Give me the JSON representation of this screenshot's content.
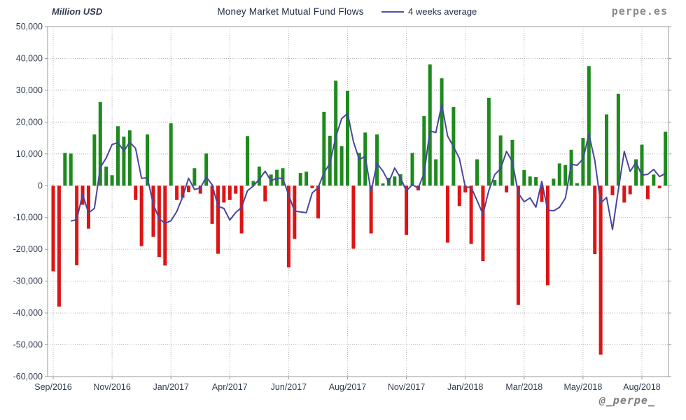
{
  "header": {
    "unit_label": "Million USD",
    "title": "Money Market Mutual Fund Flows",
    "legend_label": "4 weeks average",
    "watermark": "perpe.es"
  },
  "footer": {
    "handle": "@_perpe_"
  },
  "chart_data": {
    "type": "bar",
    "title": "Money Market Mutual Fund Flows",
    "ylabel": "Million USD",
    "ylim": [
      -60000,
      50000
    ],
    "y_tick_step": 10000,
    "y_tick_labels": [
      "50,000",
      "40,000",
      "30,000",
      "20,000",
      "10,000",
      "0",
      "-10,000",
      "-20,000",
      "-30,000",
      "-40,000",
      "-50,000",
      "-60,000"
    ],
    "x_tick_labels": [
      "Sep/2016",
      "Nov/2016",
      "Jan/2017",
      "Apr/2017",
      "Jun/2017",
      "Aug/2017",
      "Nov/2017",
      "Jan/2018",
      "Mar/2018",
      "May/2018",
      "Aug/2018"
    ],
    "x_tick_week_indexes": [
      0,
      10,
      20,
      30,
      40,
      50,
      60,
      70,
      80,
      90,
      100
    ],
    "grid": "dotted",
    "legend_position": "top",
    "bar_color_positive": "#1e8a1e",
    "bar_color_negative": "#de1414",
    "line_color": "#4747a0",
    "line_series_name": "4 weeks average",
    "line_definition": "trailing 4-week mean of weekly flows, plotted from week 4 onward",
    "weekly_flows": [
      -26900,
      -38000,
      10300,
      10100,
      -25000,
      -6000,
      -13500,
      16100,
      26300,
      6000,
      3300,
      18700,
      15400,
      17400,
      -4500,
      -19000,
      16100,
      -16100,
      -22400,
      -25100,
      19600,
      -4500,
      -3800,
      -2000,
      5500,
      -2500,
      10100,
      -12000,
      -21400,
      -5300,
      -4500,
      -2500,
      -15000,
      15600,
      1500,
      6000,
      -4900,
      3500,
      5000,
      5500,
      -25700,
      -16700,
      4000,
      4400,
      -800,
      -10300,
      23200,
      15700,
      33000,
      12400,
      29800,
      -19800,
      10300,
      16700,
      -15000,
      16100,
      700,
      2500,
      2900,
      3600,
      -15500,
      10300,
      -1500,
      21900,
      38100,
      8300,
      33800,
      -17900,
      24700,
      -6400,
      -2100,
      -18300,
      8300,
      -23700,
      27600,
      1800,
      15800,
      -2100,
      14400,
      -37500,
      4900,
      2900,
      2700,
      -5100,
      -31300,
      2200,
      7000,
      6500,
      11300,
      800,
      15000,
      37600,
      -21500,
      -53100,
      22400,
      -3000,
      28900,
      -5300,
      -2700,
      8300,
      12900,
      -4200,
      3500,
      -800,
      17000
    ]
  }
}
